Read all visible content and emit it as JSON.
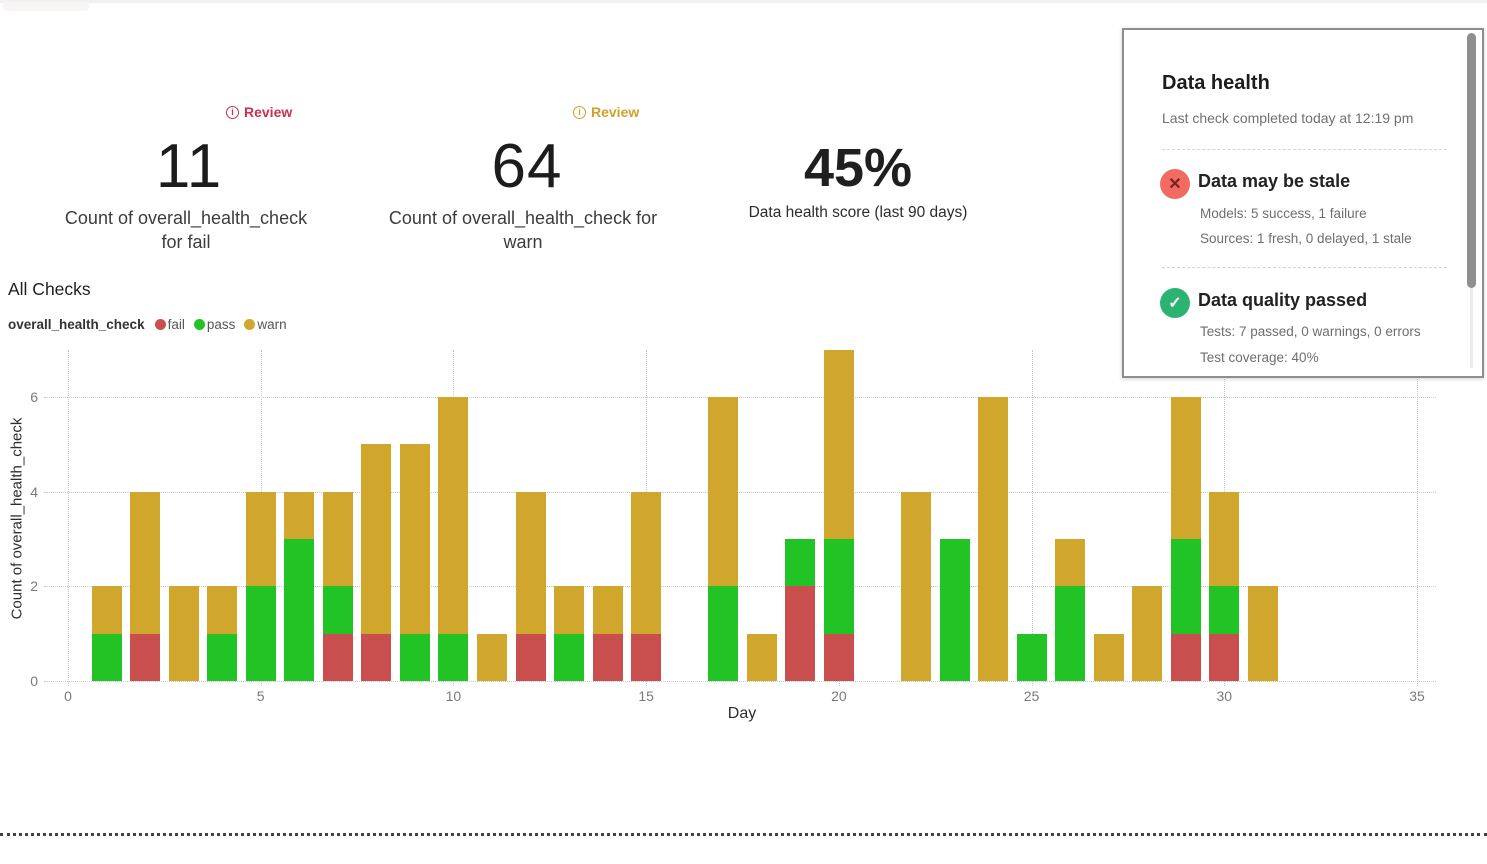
{
  "kpis": [
    {
      "badge_label": "Review",
      "badge_icon": "info-circle-icon",
      "badge_color": "#c5334e",
      "value": "11",
      "label_line1": "Count of overall_health_check",
      "label_line2": "for fail"
    },
    {
      "badge_label": "Review",
      "badge_icon": "info-circle-icon",
      "badge_color": "#cfa12b",
      "value": "64",
      "label_line1": "Count of overall_health_check for",
      "label_line2": "warn"
    },
    {
      "value": "45%",
      "label_line1": "Data health score (last 90 days)"
    }
  ],
  "section_title": "All Checks",
  "legend": {
    "series_name": "overall_health_check",
    "items": [
      {
        "label": "fail",
        "color": "#c94f4f"
      },
      {
        "label": "pass",
        "color": "#22c325"
      },
      {
        "label": "warn",
        "color": "#d0a72c"
      }
    ]
  },
  "chart_data": {
    "type": "bar",
    "stacked": true,
    "title": "All Checks",
    "xlabel": "Day",
    "ylabel": "Count of overall_health_check",
    "x": [
      1,
      2,
      3,
      4,
      5,
      6,
      7,
      8,
      9,
      10,
      11,
      12,
      13,
      14,
      15,
      16,
      17,
      18,
      19,
      20,
      21,
      22,
      23,
      24,
      25,
      26,
      27,
      28,
      29,
      30,
      31
    ],
    "series": [
      {
        "name": "fail",
        "color": "#c94f4f",
        "values": [
          0,
          1,
          0,
          0,
          0,
          0,
          1,
          1,
          0,
          0,
          0,
          1,
          0,
          1,
          1,
          0,
          0,
          0,
          2,
          1,
          0,
          0,
          0,
          0,
          0,
          0,
          0,
          0,
          1,
          1,
          0
        ]
      },
      {
        "name": "pass",
        "color": "#22c325",
        "values": [
          1,
          0,
          0,
          1,
          2,
          3,
          1,
          0,
          1,
          1,
          0,
          0,
          1,
          0,
          0,
          0,
          2,
          0,
          1,
          2,
          0,
          0,
          3,
          0,
          1,
          2,
          0,
          0,
          2,
          1,
          0
        ]
      },
      {
        "name": "warn",
        "color": "#d0a72c",
        "values": [
          1,
          3,
          2,
          1,
          2,
          1,
          2,
          4,
          4,
          5,
          1,
          3,
          1,
          1,
          3,
          0,
          4,
          1,
          0,
          4,
          0,
          4,
          0,
          6,
          0,
          1,
          1,
          2,
          3,
          2,
          2
        ]
      }
    ],
    "xticks": [
      0,
      5,
      10,
      15,
      20,
      25,
      30,
      35
    ],
    "yticks": [
      0,
      2,
      4,
      6
    ],
    "xlim": [
      0,
      36.8
    ],
    "ylim": [
      0,
      7
    ],
    "grid": true,
    "legend_position": "top-left"
  },
  "panel": {
    "title": "Data health",
    "subtitle": "Last check completed today at 12:19 pm",
    "items": [
      {
        "icon": "x-circle-icon",
        "icon_glyph": "✕",
        "icon_bg": "#f26b60",
        "icon_fg": "#7c1f1f",
        "title": "Data may be stale",
        "line1": "Models: 5 success, 1 failure",
        "line2": "Sources: 1 fresh, 0 delayed, 1 stale"
      },
      {
        "icon": "check-circle-icon",
        "icon_glyph": "✓",
        "icon_bg": "#2db371",
        "icon_fg": "#ffffff",
        "title": "Data quality passed",
        "line1": "Tests: 7 passed, 0 warnings, 0 errors",
        "line2": "Test coverage: 40%"
      }
    ]
  }
}
